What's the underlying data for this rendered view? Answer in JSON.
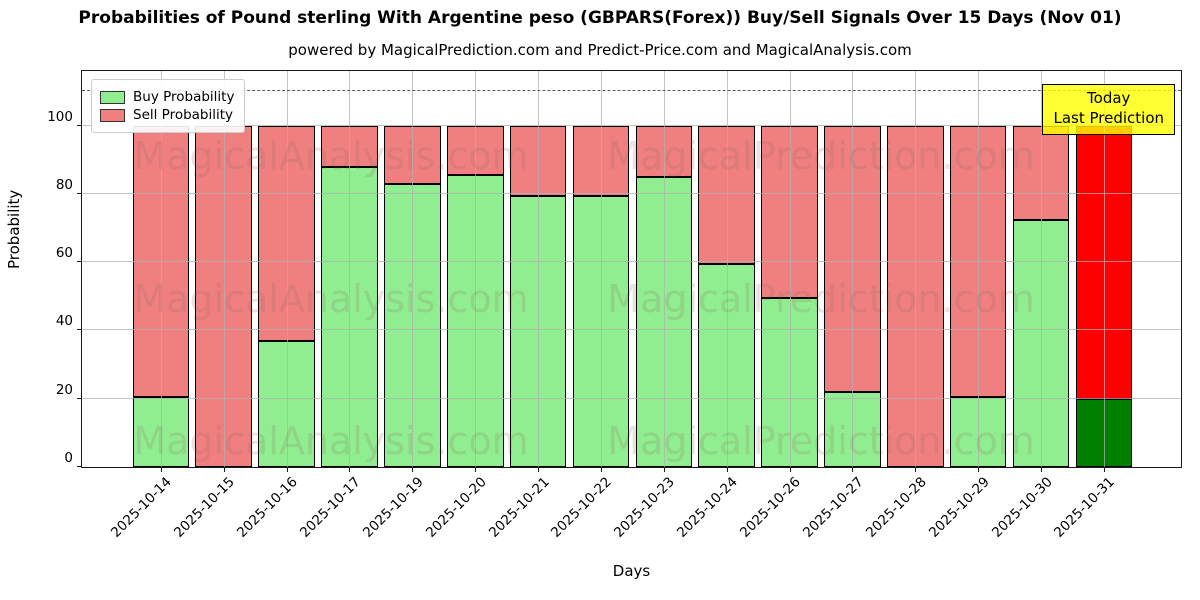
{
  "title": "Probabilities of Pound sterling With Argentine peso (GBPARS(Forex)) Buy/Sell Signals Over 15 Days (Nov 01)",
  "subtitle": "powered by MagicalPrediction.com and Predict-Price.com and MagicalAnalysis.com",
  "legend": {
    "items": [
      {
        "label": "Buy Probability",
        "color": "#90ee90"
      },
      {
        "label": "Sell Probability",
        "color": "#f08080"
      }
    ]
  },
  "annotation_box": {
    "line1": "Today",
    "line2": "Last Prediction",
    "bg_color": "#ffff00"
  },
  "watermarks": {
    "left_text": "MagicalAnalysis.com",
    "right_text": "MagicalPrediction.com"
  },
  "chart_data": {
    "type": "bar",
    "stacked": true,
    "title": "Probabilities of Pound sterling With Argentine peso (GBPARS(Forex)) Buy/Sell Signals Over 15 Days (Nov 01)",
    "xlabel": "Days",
    "ylabel": "Probability",
    "categories": [
      "2025-10-14",
      "2025-10-15",
      "2025-10-16",
      "2025-10-17",
      "2025-10-19",
      "2025-10-20",
      "2025-10-21",
      "2025-10-22",
      "2025-10-23",
      "2025-10-24",
      "2025-10-26",
      "2025-10-27",
      "2025-10-28",
      "2025-10-29",
      "2025-10-30",
      "2025-10-31"
    ],
    "series": [
      {
        "name": "Buy Probability",
        "color": "#90ee90",
        "values": [
          20.5,
          0,
          37,
          88,
          83,
          85.5,
          79.5,
          79.5,
          85,
          59.5,
          49.5,
          22,
          0,
          20.5,
          72.5,
          20
        ]
      },
      {
        "name": "Sell Probability",
        "color": "#f08080",
        "values": [
          79.5,
          100,
          63,
          12,
          17,
          14.5,
          20.5,
          20.5,
          15,
          40.5,
          50.5,
          78,
          100,
          79.5,
          27.5,
          80
        ]
      }
    ],
    "today_index": 15,
    "today_colors": {
      "buy": "#008000",
      "sell": "#ff0000"
    },
    "yticks": [
      0,
      20,
      40,
      60,
      80,
      100
    ],
    "ylim": [
      0,
      116
    ],
    "dashed_line_y": 110,
    "grid": true,
    "legend_position": "upper left",
    "xtick_rotation": 45
  }
}
